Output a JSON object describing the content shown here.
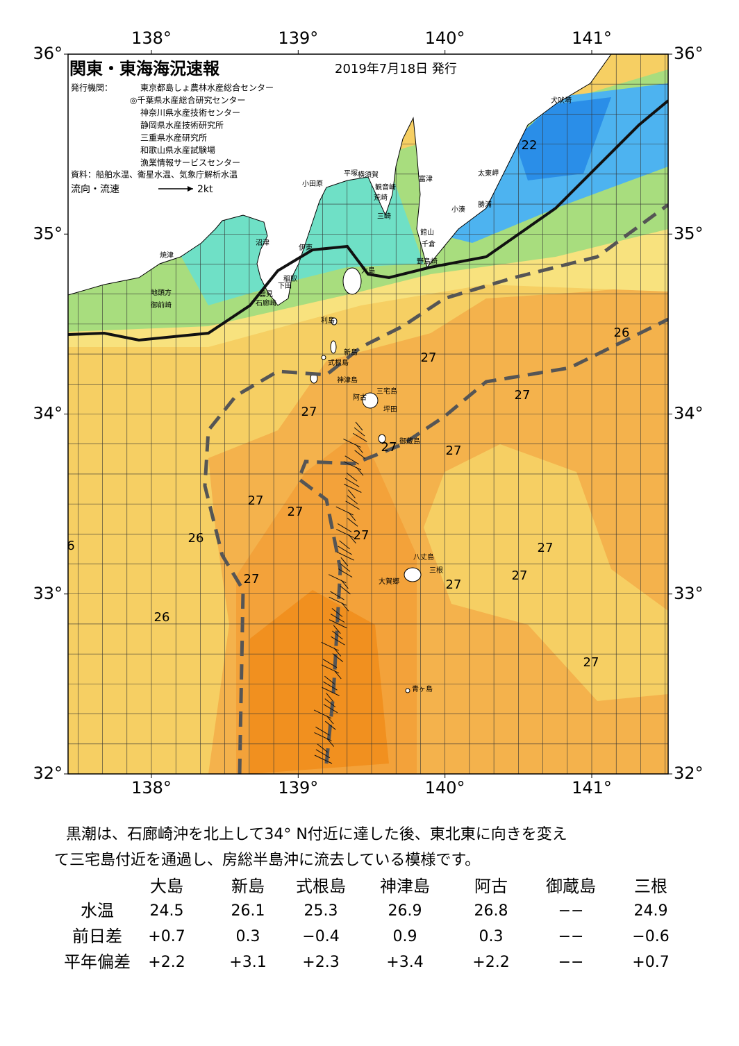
{
  "header": {
    "title": "関東・東海海況速報",
    "date": "2019年7月18日 発行",
    "issuer_label": "発行機関：",
    "issuers": [
      "東京都島しょ農林水産総合センター",
      "◎千葉県水産総合研究センター",
      "神奈川県水産技術センター",
      "静岡県水産技術研究所",
      "三重県水産研究所",
      "和歌山県水産試験場",
      "漁業情報サービスセンター"
    ],
    "source": "資料：船舶水温、衛星水温、気象庁解析水温",
    "legend": {
      "label": "流向・流速",
      "unit": "2kt"
    }
  },
  "map": {
    "lon_ticks": [
      {
        "value": 138,
        "label": "138°"
      },
      {
        "value": 139,
        "label": "139°"
      },
      {
        "value": 140,
        "label": "140°"
      },
      {
        "value": 141,
        "label": "141°"
      }
    ],
    "lat_ticks": [
      {
        "value": 36,
        "label": "36°"
      },
      {
        "value": 35,
        "label": "35°"
      },
      {
        "value": 34,
        "label": "34°"
      },
      {
        "value": 33,
        "label": "33°"
      },
      {
        "value": 32,
        "label": "32°"
      }
    ],
    "temperature_labels": [
      "22",
      "26",
      "27",
      "27",
      "27",
      "27",
      "27",
      "27",
      "27",
      "27",
      "26",
      "6",
      "27",
      "27",
      "27",
      "27",
      "26",
      "27"
    ],
    "place_names": [
      "犬吠埼",
      "太東岬",
      "勝浦",
      "小湊",
      "館山",
      "千倉",
      "野島崎",
      "富津",
      "横須賀",
      "観音崎",
      "平塚",
      "荒崎",
      "三崎",
      "小田原",
      "沼津",
      "伊東",
      "焼津",
      "稲取",
      "下田",
      "雲見",
      "石廊崎",
      "地頭方",
      "御前崎",
      "大島",
      "利島",
      "新島",
      "式根島",
      "神津島",
      "三宅島",
      "阿古",
      "坪田",
      "御蔵島",
      "八丈島",
      "三根",
      "大賀郷",
      "青ヶ島"
    ]
  },
  "description": [
    "黒潮は、石廊崎沖を北上して34° N付近に達した後、東北東に向きを変え",
    "て三宅島付近を通過し、房総半島沖に流去している模様です。"
  ],
  "table": {
    "columns": [
      "大島",
      "新島",
      "式根島",
      "神津島",
      "阿古",
      "御蔵島",
      "三根"
    ],
    "rows": [
      {
        "label": "水温",
        "values": [
          "24.5",
          "26.1",
          "25.3",
          "26.9",
          "26.8",
          "−−",
          "24.9"
        ]
      },
      {
        "label": "前日差",
        "values": [
          "+0.7",
          "0.3",
          "−0.4",
          "0.9",
          "0.3",
          "−−",
          "−0.6"
        ]
      },
      {
        "label": "平年偏差",
        "values": [
          "+2.2",
          "+3.1",
          "+2.3",
          "+3.4",
          "+2.2",
          "−−",
          "+0.7"
        ]
      }
    ]
  }
}
